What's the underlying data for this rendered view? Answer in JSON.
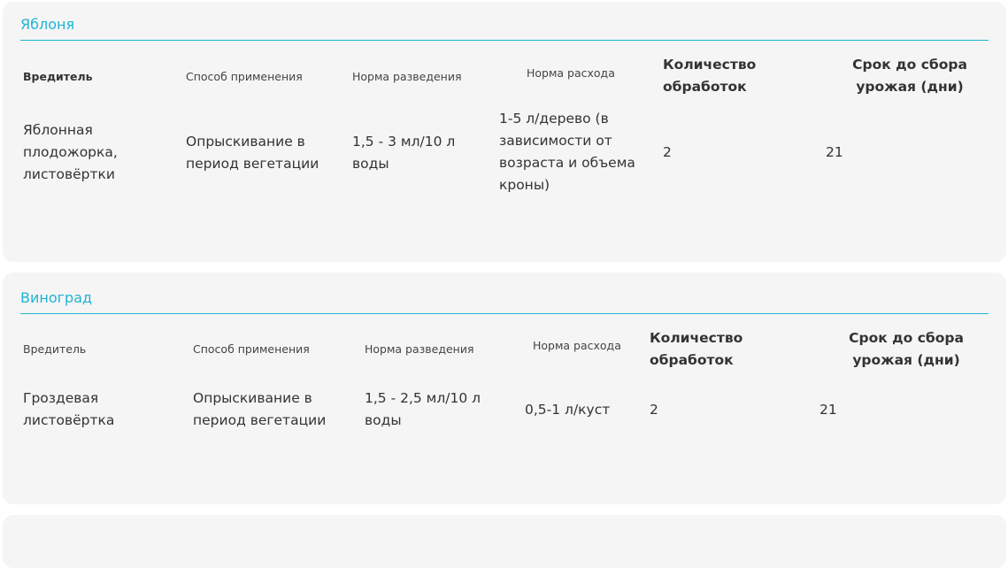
{
  "cards": [
    {
      "title": "Яблоня",
      "headers": [
        "Вредитель",
        "Способ применения",
        "Норма разведения",
        "Норма расхода",
        "Количество обработок",
        "Срок до сбора урожая (дни)"
      ],
      "row": [
        "Яблонная плодожорка, листовёртки",
        "Опрыскивание в период вегетации",
        "1,5 - 3 мл/10 л воды",
        "1-5 л/дерево (в зависимости от возраста и объема кроны)",
        "2",
        "21"
      ]
    },
    {
      "title": "Виноград",
      "headers": [
        "Вредитель",
        "Способ применения",
        "Норма разведения",
        "Норма расхода",
        "Количество обработок",
        "Срок до сбора урожая (дни)"
      ],
      "row": [
        "Гроздевая листовёртка",
        "Опрыскивание в период вегетации",
        "1,5 - 2,5 мл/10 л воды",
        "0,5-1 л/куст",
        "2",
        "21"
      ]
    }
  ],
  "colors": {
    "accent": "#1eb4d4",
    "card": "#f5f5f5"
  }
}
